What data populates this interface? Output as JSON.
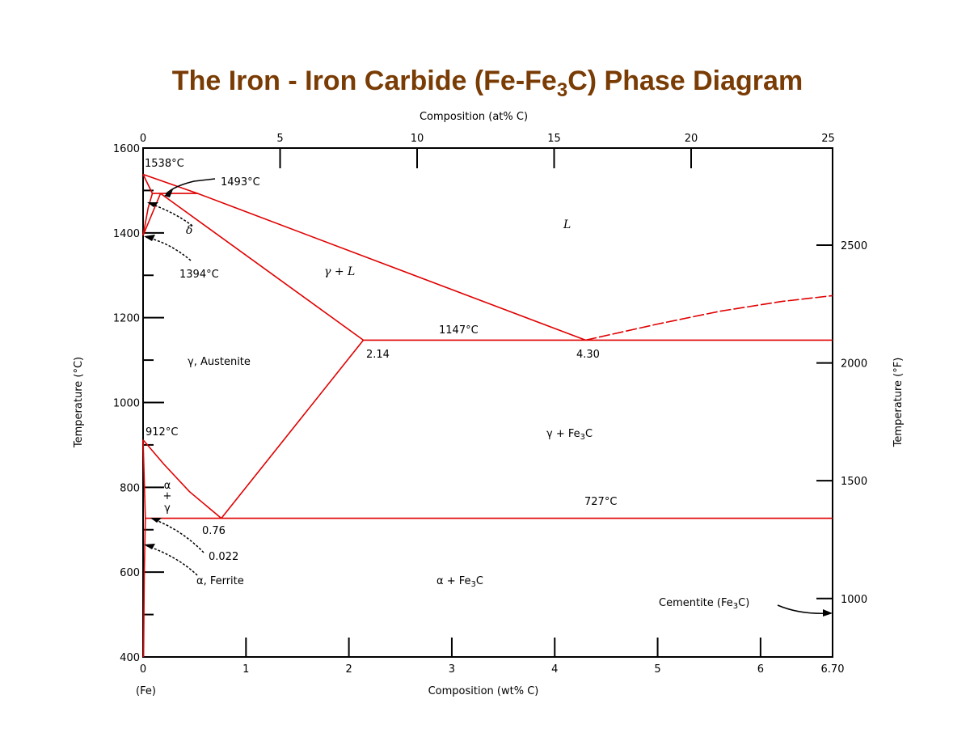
{
  "title": {
    "pre": "The Iron - Iron Carbide (Fe-Fe",
    "sub": "3",
    "post": "C) Phase Diagram"
  },
  "colors": {
    "title": "#7a3c05",
    "phase_lines": "#e00000",
    "axes": "#000000"
  },
  "chart_data": {
    "type": "phase-diagram",
    "x_axis": {
      "label": "Composition (wt% C)",
      "min": 0,
      "max": 6.7,
      "ticks": [
        0,
        1,
        2,
        3,
        4,
        5,
        6,
        6.7
      ],
      "tick_labels": [
        "0",
        "1",
        "2",
        "3",
        "4",
        "5",
        "6",
        "6.70"
      ],
      "origin_label": "(Fe)"
    },
    "x2_axis": {
      "label": "Composition (at% C)",
      "ticks": [
        0,
        5,
        10,
        15,
        20,
        25
      ],
      "tick_labels": [
        "0",
        "5",
        "10",
        "15",
        "20",
        "25"
      ]
    },
    "y_axis": {
      "label": "Temperature (°C)",
      "min": 400,
      "max": 1600,
      "ticks": [
        400,
        600,
        800,
        1000,
        1200,
        1400,
        1600
      ],
      "tick_labels": [
        "400",
        "600",
        "800",
        "1000",
        "1200",
        "1400",
        "1600"
      ],
      "minor_ticks": [
        500,
        700,
        900,
        1100,
        1300,
        1500
      ]
    },
    "y2_axis": {
      "label": "Temperature (°F)",
      "ticks": [
        1000,
        1500,
        2000,
        2500
      ],
      "tick_labels": [
        "1000",
        "1500",
        "2000",
        "2500"
      ]
    },
    "boundaries": [
      {
        "name": "liquidus-left",
        "points": [
          [
            0,
            1538
          ],
          [
            0.53,
            1493
          ],
          [
            4.3,
            1147
          ]
        ]
      },
      {
        "name": "liquidus-right",
        "dashed": true,
        "points": [
          [
            4.3,
            1147
          ],
          [
            5.0,
            1185
          ],
          [
            5.6,
            1215
          ],
          [
            6.2,
            1238
          ],
          [
            6.7,
            1252
          ]
        ]
      },
      {
        "name": "delta-solidus",
        "points": [
          [
            0,
            1538
          ],
          [
            0.09,
            1493
          ]
        ]
      },
      {
        "name": "peritectic",
        "points": [
          [
            0.09,
            1493
          ],
          [
            0.53,
            1493
          ]
        ]
      },
      {
        "name": "delta-solvus",
        "points": [
          [
            0.09,
            1493
          ],
          [
            0.05,
            1460
          ],
          [
            0,
            1394
          ]
        ]
      },
      {
        "name": "gamma-delta",
        "points": [
          [
            0,
            1394
          ],
          [
            0.17,
            1493
          ]
        ]
      },
      {
        "name": "gamma-solidus",
        "points": [
          [
            0.17,
            1493
          ],
          [
            2.14,
            1147
          ]
        ]
      },
      {
        "name": "eutectic",
        "points": [
          [
            2.14,
            1147
          ],
          [
            6.7,
            1147
          ]
        ]
      },
      {
        "name": "acm",
        "points": [
          [
            2.14,
            1147
          ],
          [
            0.76,
            727
          ]
        ]
      },
      {
        "name": "a3",
        "points": [
          [
            0,
            912
          ],
          [
            0.2,
            855
          ],
          [
            0.45,
            790
          ],
          [
            0.76,
            727
          ]
        ]
      },
      {
        "name": "alpha-gamma",
        "points": [
          [
            0,
            912
          ],
          [
            0.022,
            727
          ]
        ]
      },
      {
        "name": "eutectoid",
        "points": [
          [
            0.022,
            727
          ],
          [
            6.7,
            727
          ]
        ]
      },
      {
        "name": "alpha-solvus",
        "points": [
          [
            0.022,
            727
          ],
          [
            0.012,
            600
          ],
          [
            0.005,
            400
          ]
        ]
      }
    ],
    "labels": {
      "t1538": "1538°C",
      "t1493": "1493°C",
      "delta": "δ",
      "t1394": "1394°C",
      "gamma_l": "γ + L",
      "liquid": "L",
      "t1147": "1147°C",
      "c214": "2.14",
      "c430": "4.30",
      "austenite": "γ, Austenite",
      "t912": "912°C",
      "gamma_fe3c": {
        "pre": "γ + Fe",
        "sub": "3",
        "post": "C"
      },
      "alpha": "α",
      "plus": "+",
      "gamma": "γ",
      "t727": "727°C",
      "c076": "0.76",
      "c0022": "0.022",
      "ferrite": "α, Ferrite",
      "alpha_fe3c": {
        "pre": "α + Fe",
        "sub": "3",
        "post": "C"
      },
      "cementite": {
        "pre": "Cementite (Fe",
        "sub": "3",
        "post": "C)"
      }
    }
  }
}
